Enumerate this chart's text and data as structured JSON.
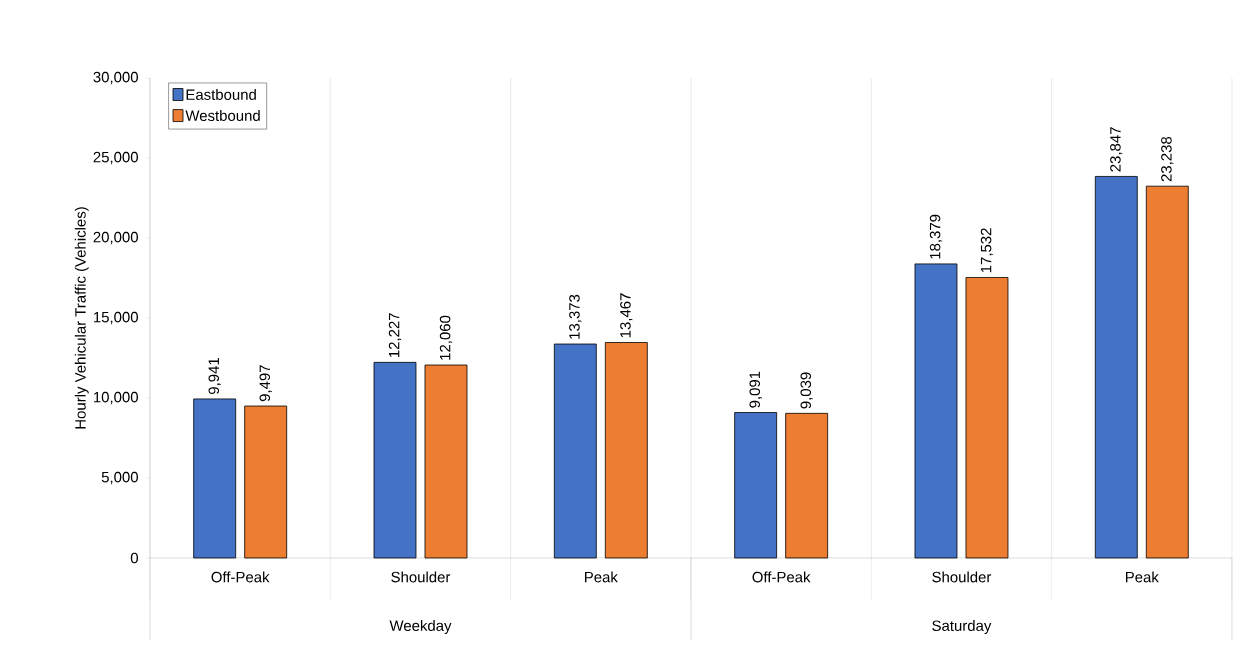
{
  "chart_data": {
    "type": "bar",
    "ylabel": "Hourly Vehicular Traffic (Vehicles)",
    "categories": [
      "Off-Peak",
      "Shoulder",
      "Peak",
      "Off-Peak",
      "Shoulder",
      "Peak"
    ],
    "annotations": [
      "Weekday",
      "Saturday"
    ],
    "series": [
      {
        "name": "Eastbound",
        "color": "#4472c4",
        "values": [
          9941,
          12227,
          13373,
          9091,
          18379,
          23847
        ],
        "value_labels": [
          "9,941",
          "12,227",
          "13,373",
          "9,091",
          "18,379",
          "23,847"
        ]
      },
      {
        "name": "Westbound",
        "color": "#ed7d31",
        "values": [
          9497,
          12060,
          13467,
          9039,
          17532,
          23238
        ],
        "value_labels": [
          "9,497",
          "12,060",
          "13,467",
          "9,039",
          "17,532",
          "23,238"
        ]
      }
    ],
    "ylim": [
      0,
      30000
    ],
    "yticks": [
      {
        "value": 0,
        "label": "0"
      },
      {
        "value": 5000,
        "label": "5,000"
      },
      {
        "value": 10000,
        "label": "10,000"
      },
      {
        "value": 15000,
        "label": "15,000"
      },
      {
        "value": 20000,
        "label": "20,000"
      },
      {
        "value": 25000,
        "label": "25,000"
      },
      {
        "value": 30000,
        "label": "30,000"
      }
    ],
    "grid": "x",
    "legend": "top left"
  }
}
